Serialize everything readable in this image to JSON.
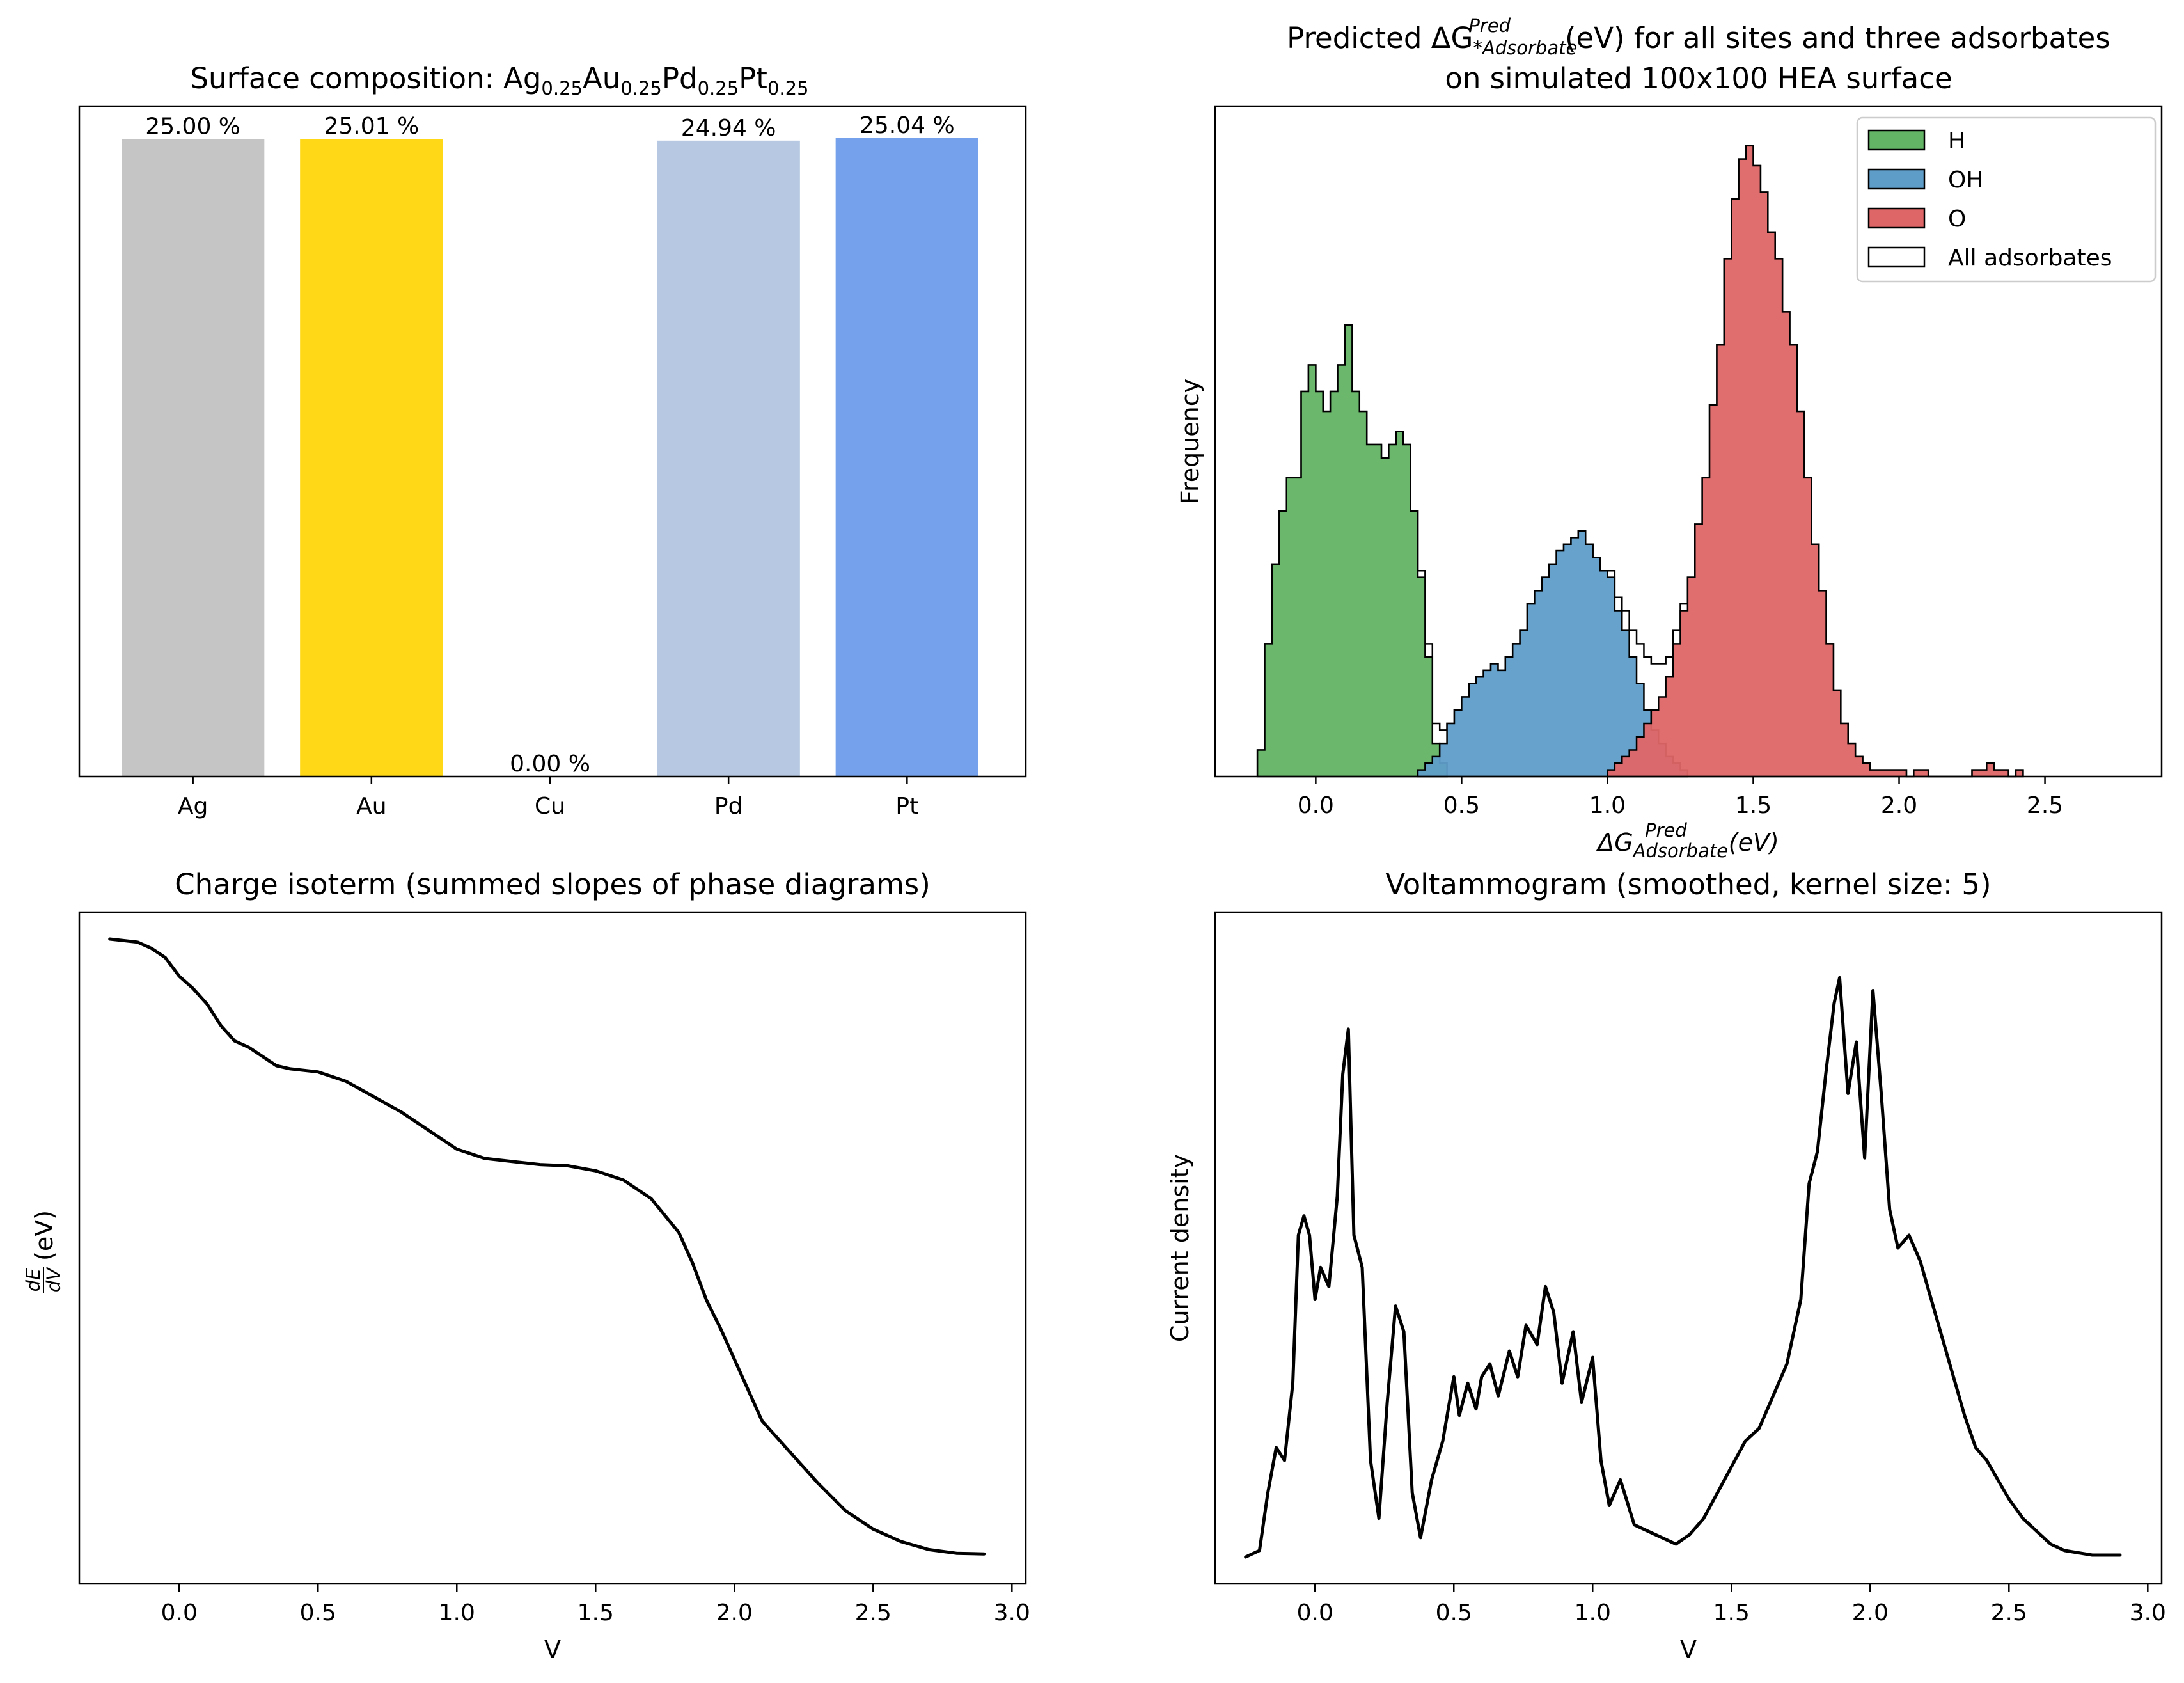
{
  "chart_data": [
    {
      "type": "bar",
      "title_parts": [
        "Surface composition: ",
        "Ag",
        "0.25",
        "Au",
        "0.25",
        "Pd",
        "0.25",
        "Pt",
        "0.25"
      ],
      "categories": [
        "Ag",
        "Au",
        "Cu",
        "Pd",
        "Pt"
      ],
      "values": [
        25.0,
        25.01,
        0.0,
        24.94,
        25.04
      ],
      "labels": [
        "25.00 %",
        "25.01 %",
        "0.00 %",
        "24.94 %",
        "25.04 %"
      ],
      "colors": [
        "#c5c5c5",
        "#ffd918",
        "#ffffff",
        "#b7c9e2",
        "#75a0eb"
      ],
      "ylim": [
        0,
        26.29
      ],
      "xlabel": "",
      "ylabel": ""
    },
    {
      "type": "histogram",
      "title_line1_parts": [
        "Predicted ΔG",
        "*Adsorbate",
        "Pred",
        "(eV) for all sites and three adsorbates"
      ],
      "title_line2": "on simulated 100x100 HEA surface",
      "xlabel_parts": [
        "ΔG",
        "Adsorbate",
        "Pred",
        "(eV)"
      ],
      "ylabel": "Frequency",
      "xlim": [
        -0.345,
        2.9
      ],
      "xticks": [
        "0.0",
        "0.5",
        "1.0",
        "1.5",
        "2.0",
        "2.5"
      ],
      "bin_width": 0.025,
      "series": [
        {
          "name": "H",
          "color": "#63b465",
          "start": -0.2,
          "counts": [
            4,
            20,
            32,
            40,
            45,
            45,
            58,
            62,
            58,
            55,
            58,
            62,
            68,
            58,
            55,
            50,
            50,
            48,
            50,
            52,
            50,
            40,
            30,
            18,
            5,
            2
          ]
        },
        {
          "name": "OH",
          "color": "#5f9dc9",
          "start": 0.35,
          "counts": [
            1,
            2,
            3,
            5,
            8,
            10,
            12,
            14,
            15,
            16,
            17,
            16,
            18,
            20,
            22,
            26,
            28,
            30,
            32,
            34,
            35,
            36,
            37,
            35,
            33,
            31,
            30,
            25,
            22,
            18,
            14,
            10,
            7,
            5,
            3,
            2,
            1
          ]
        },
        {
          "name": "O",
          "color": "#df6667",
          "start": 1.0,
          "counts": [
            1,
            2,
            3,
            4,
            6,
            8,
            10,
            12,
            15,
            20,
            25,
            30,
            38,
            45,
            56,
            65,
            78,
            87,
            93,
            95,
            92,
            88,
            82,
            78,
            70,
            65,
            55,
            45,
            35,
            28,
            20,
            13,
            8,
            5,
            3,
            2,
            1,
            1,
            1,
            1,
            1,
            0,
            1,
            1,
            0,
            0,
            0,
            0,
            0,
            0,
            1,
            1,
            2,
            1,
            1,
            0,
            1
          ]
        },
        {
          "name": "All adsorbates",
          "color": "#ffffff",
          "edge": "#000000"
        }
      ],
      "legend": "top-right",
      "grid": false
    },
    {
      "type": "line",
      "title": "Charge isoterm (summed slopes of phase diagrams)",
      "xlabel": "V",
      "ylabel_frac_num": "dE",
      "ylabel_frac_den": "dV",
      "ylabel_suffix": "(eV)",
      "xlim": [
        -0.36,
        3.05
      ],
      "xticks": [
        "0.0",
        "0.5",
        "1.0",
        "1.5",
        "2.0",
        "2.5",
        "3.0"
      ],
      "x": [
        -0.25,
        -0.15,
        -0.1,
        -0.05,
        0.0,
        0.05,
        0.1,
        0.15,
        0.2,
        0.25,
        0.3,
        0.35,
        0.4,
        0.5,
        0.6,
        0.7,
        0.8,
        0.9,
        1.0,
        1.1,
        1.2,
        1.3,
        1.4,
        1.5,
        1.6,
        1.7,
        1.8,
        1.85,
        1.9,
        1.95,
        2.0,
        2.05,
        2.1,
        2.2,
        2.3,
        2.4,
        2.5,
        2.6,
        2.7,
        2.8,
        2.9
      ],
      "y": [
        1.0,
        0.995,
        0.985,
        0.97,
        0.94,
        0.92,
        0.895,
        0.86,
        0.835,
        0.825,
        0.81,
        0.795,
        0.79,
        0.785,
        0.77,
        0.745,
        0.72,
        0.69,
        0.66,
        0.645,
        0.64,
        0.635,
        0.633,
        0.625,
        0.61,
        0.58,
        0.525,
        0.475,
        0.415,
        0.37,
        0.32,
        0.27,
        0.22,
        0.17,
        0.12,
        0.075,
        0.045,
        0.025,
        0.012,
        0.006,
        0.005
      ]
    },
    {
      "type": "line",
      "title": "Voltammogram (smoothed, kernel size: 5)",
      "xlabel": "V",
      "ylabel": "Current density",
      "xlim": [
        -0.36,
        3.05
      ],
      "xticks": [
        "0.0",
        "0.5",
        "1.0",
        "1.5",
        "2.0",
        "2.5",
        "3.0"
      ],
      "x": [
        -0.25,
        -0.2,
        -0.17,
        -0.14,
        -0.11,
        -0.08,
        -0.06,
        -0.04,
        -0.02,
        0.0,
        0.02,
        0.05,
        0.08,
        0.1,
        0.12,
        0.14,
        0.17,
        0.2,
        0.23,
        0.26,
        0.29,
        0.32,
        0.35,
        0.38,
        0.42,
        0.46,
        0.5,
        0.52,
        0.55,
        0.58,
        0.6,
        0.63,
        0.66,
        0.7,
        0.73,
        0.76,
        0.8,
        0.83,
        0.86,
        0.89,
        0.93,
        0.96,
        1.0,
        1.03,
        1.06,
        1.1,
        1.15,
        1.2,
        1.25,
        1.3,
        1.35,
        1.4,
        1.45,
        1.5,
        1.55,
        1.6,
        1.65,
        1.7,
        1.75,
        1.78,
        1.81,
        1.84,
        1.87,
        1.89,
        1.92,
        1.95,
        1.98,
        2.01,
        2.04,
        2.07,
        2.1,
        2.14,
        2.18,
        2.22,
        2.26,
        2.3,
        2.34,
        2.38,
        2.42,
        2.46,
        2.5,
        2.55,
        2.6,
        2.65,
        2.7,
        2.8,
        2.9
      ],
      "y": [
        0.0,
        0.01,
        0.1,
        0.17,
        0.15,
        0.27,
        0.5,
        0.53,
        0.5,
        0.4,
        0.45,
        0.42,
        0.56,
        0.75,
        0.82,
        0.5,
        0.45,
        0.15,
        0.06,
        0.24,
        0.39,
        0.35,
        0.1,
        0.03,
        0.12,
        0.18,
        0.28,
        0.22,
        0.27,
        0.23,
        0.28,
        0.3,
        0.25,
        0.32,
        0.28,
        0.36,
        0.33,
        0.42,
        0.38,
        0.27,
        0.35,
        0.24,
        0.31,
        0.15,
        0.08,
        0.12,
        0.05,
        0.04,
        0.03,
        0.02,
        0.035,
        0.06,
        0.1,
        0.14,
        0.18,
        0.2,
        0.25,
        0.3,
        0.4,
        0.58,
        0.63,
        0.75,
        0.86,
        0.9,
        0.72,
        0.8,
        0.62,
        0.88,
        0.72,
        0.54,
        0.48,
        0.5,
        0.46,
        0.4,
        0.34,
        0.28,
        0.22,
        0.17,
        0.15,
        0.12,
        0.09,
        0.06,
        0.04,
        0.02,
        0.01,
        0.003,
        0.003
      ],
      "ymax": 0.96
    }
  ]
}
